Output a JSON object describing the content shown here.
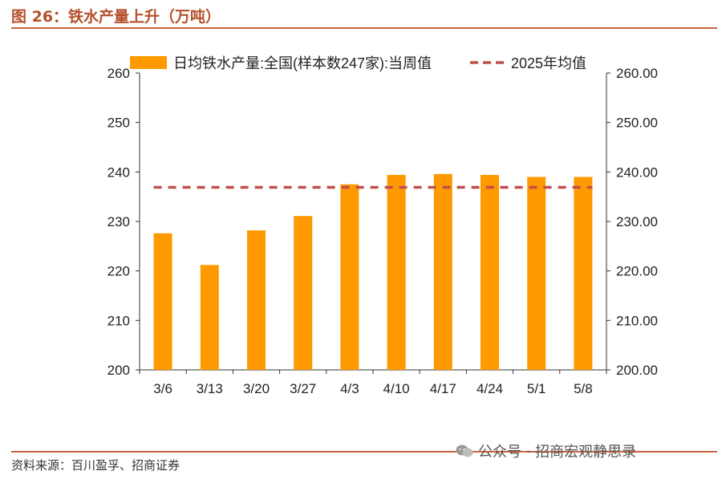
{
  "header": {
    "title": "图 26：铁水产量上升（万吨）"
  },
  "footer": {
    "source": "资料来源：百川盈孚、招商证券",
    "watermark": "公众号 · 招商宏观静思录"
  },
  "colors": {
    "bar": "#FF9900",
    "avg_line": "#C0504D",
    "title": "#B5502B",
    "rule": "#C8643A"
  },
  "chart_data": {
    "type": "bar",
    "categories": [
      "3/6",
      "3/13",
      "3/20",
      "3/27",
      "4/3",
      "4/10",
      "4/17",
      "4/24",
      "5/1",
      "5/8"
    ],
    "series": [
      {
        "name": "日均铁水产量:全国(样本数247家):当周值",
        "type": "bar",
        "axis": "left",
        "values": [
          227.6,
          221.2,
          228.2,
          231.1,
          237.5,
          239.4,
          239.6,
          239.4,
          239.0,
          239.0
        ]
      },
      {
        "name": "2025年均值",
        "type": "dashed-line",
        "axis": "right",
        "values": [
          236.9,
          236.9,
          236.9,
          236.9,
          236.9,
          236.9,
          236.9,
          236.9,
          236.9,
          236.9
        ]
      }
    ],
    "y_left": {
      "min": 200,
      "max": 260,
      "ticks": [
        "200",
        "210",
        "220",
        "230",
        "240",
        "250",
        "260"
      ]
    },
    "y_right": {
      "min": 200,
      "max": 260,
      "ticks": [
        "200.00",
        "210.00",
        "220.00",
        "230.00",
        "240.00",
        "250.00",
        "260.00"
      ]
    },
    "legend": "top",
    "grid": false
  }
}
